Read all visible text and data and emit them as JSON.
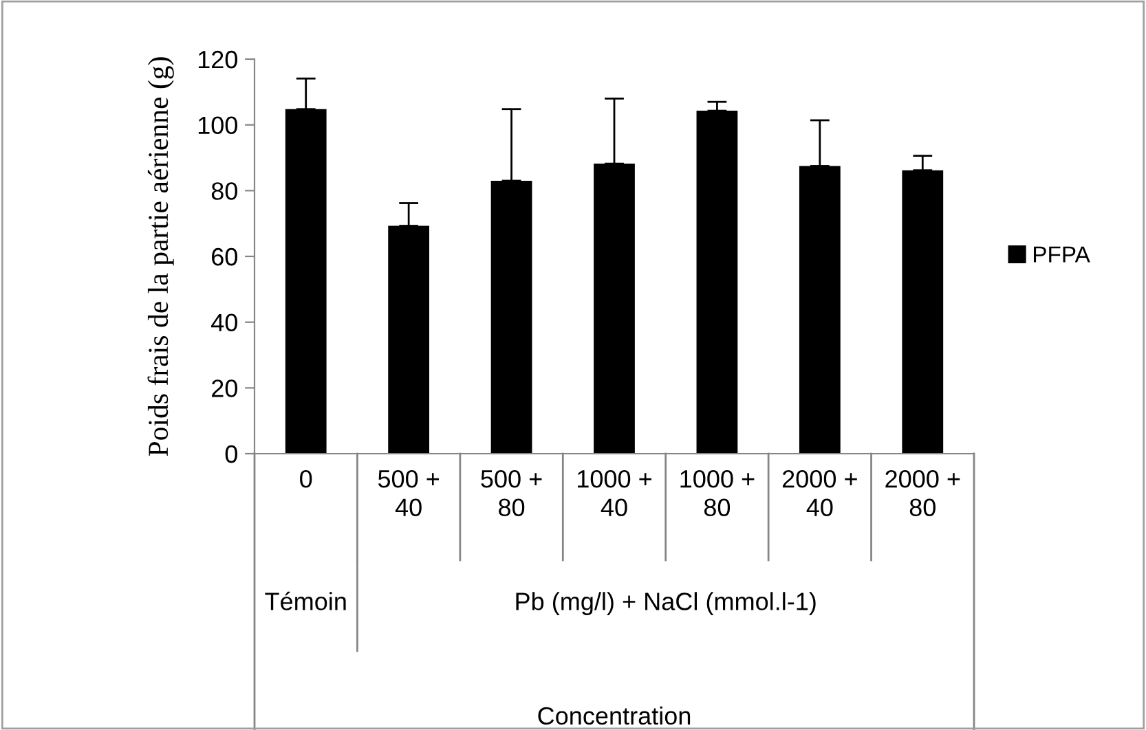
{
  "chart_data": {
    "type": "bar",
    "ylabel": "Poids frais de la partie aérienne (g)",
    "categories": [
      "0",
      "500 + 40",
      "500 + 80",
      "1000 + 40",
      "1000 + 80",
      "2000 + 40",
      "2000 + 80"
    ],
    "series": [
      {
        "name": "PFPA",
        "color": "#000000",
        "values": [
          104.8,
          69.3,
          83.0,
          88.2,
          104.3,
          87.5,
          86.2
        ],
        "errors": [
          [
            104.8,
            114.1
          ],
          [
            69.3,
            76.2
          ],
          [
            83.0,
            104.8
          ],
          [
            88.2,
            108.0
          ],
          [
            104.3,
            107.0
          ],
          [
            87.5,
            101.4
          ],
          [
            86.2,
            90.6
          ]
        ]
      }
    ],
    "annotations": [
      "Témoin",
      "Pb (mg/l) + NaCl (mmol.l-1)",
      "Concentration"
    ],
    "ylim": [
      0,
      120
    ],
    "yticks": [
      0,
      20,
      40,
      60,
      80,
      100,
      120
    ],
    "grid": false,
    "legend": "right"
  }
}
